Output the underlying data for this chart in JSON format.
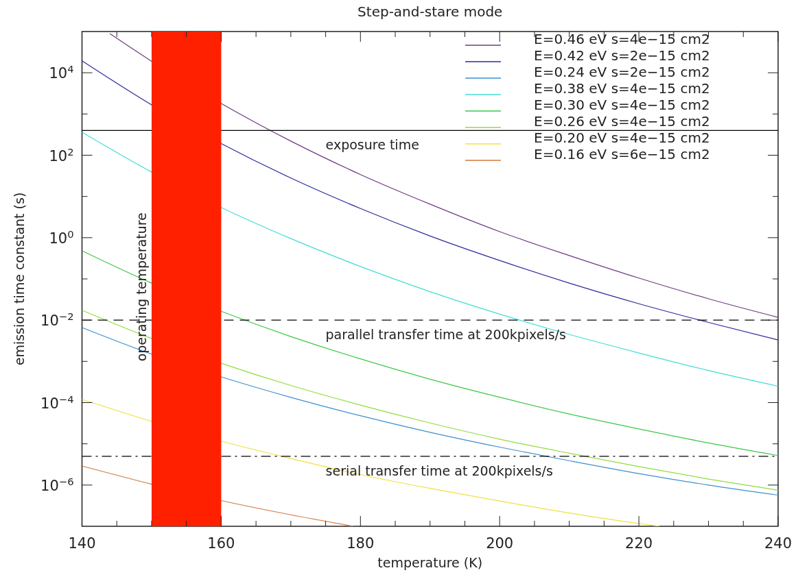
{
  "chart_data": {
    "type": "line",
    "title": "Step-and-stare mode",
    "xlabel": "temperature (K)",
    "ylabel": "emission time constant (s)",
    "log": "y",
    "xlim": [
      140,
      240
    ],
    "ylim": [
      1e-07,
      100000
    ],
    "xticks": [
      140,
      {
        "value": 145,
        "label": null
      },
      {
        "value": 150,
        "label": null
      },
      {
        "value": 155,
        "label": null
      },
      160,
      {
        "value": 165,
        "label": null
      },
      {
        "value": 170,
        "label": null
      },
      {
        "value": 175,
        "label": null
      },
      180,
      {
        "value": 185,
        "label": null
      },
      {
        "value": 190,
        "label": null
      },
      {
        "value": 195,
        "label": null
      },
      200,
      {
        "value": 205,
        "label": null
      },
      {
        "value": 210,
        "label": null
      },
      {
        "value": 215,
        "label": null
      },
      220,
      {
        "value": 225,
        "label": null
      },
      {
        "value": 230,
        "label": null
      },
      {
        "value": 235,
        "label": null
      },
      240
    ],
    "yticks": [
      {
        "value": 1e-06,
        "label": "10$^{−6}$"
      },
      {
        "value": 1e-05,
        "label": null
      },
      {
        "value": 0.0001,
        "label": "10$^{−4}$"
      },
      {
        "value": 0.001,
        "label": null
      },
      {
        "value": 0.01,
        "label": "10$^{−2}$"
      },
      {
        "value": 0.1,
        "label": null
      },
      {
        "value": 1,
        "label": "10$^{0}$"
      },
      {
        "value": 10,
        "label": null
      },
      {
        "value": 100,
        "label": "10$^{2}$"
      },
      {
        "value": 1000,
        "label": null
      },
      {
        "value": 10000,
        "label": "10$^{4}$"
      }
    ],
    "legend": "top right",
    "series": [
      {
        "name": "E=0.46 eV s=4e−15 cm2",
        "color": "#6e3a82",
        "x": [
          144,
          150,
          160,
          170,
          180,
          190,
          200,
          210,
          220,
          230,
          240
        ],
        "values": [
          89000,
          19000,
          1800,
          220,
          34,
          6.5,
          1.4,
          0.37,
          0.105,
          0.033,
          0.0117
        ]
      },
      {
        "name": "E=0.42 eV s=2e−15 cm2",
        "color": "#2a2a9c",
        "x": [
          140,
          150,
          160,
          170,
          180,
          190,
          200,
          210,
          220,
          230,
          240
        ],
        "values": [
          19500,
          1670,
          192,
          28,
          5.1,
          1.1,
          0.28,
          0.079,
          0.025,
          0.0088,
          0.0033
        ]
      },
      {
        "name": "E=0.24 eV s=2e−15 cm2",
        "color": "#3a8fd0",
        "x": [
          140,
          150,
          160,
          170,
          180,
          190,
          200,
          210,
          220,
          230,
          240
        ],
        "values": [
          0.0066,
          0.0015,
          0.00042,
          0.000134,
          4.8e-05,
          1.9e-05,
          8.3e-06,
          3.9e-06,
          1.9e-06,
          1e-06,
          5.7e-07
        ]
      },
      {
        "name": "E=0.38 eV s=4e−15 cm2",
        "color": "#40ddd6",
        "x": [
          140,
          150,
          160,
          170,
          180,
          190,
          200,
          210,
          220,
          230,
          240
        ],
        "values": [
          360,
          39,
          5.4,
          0.95,
          0.2,
          0.049,
          0.014,
          0.0045,
          0.0016,
          0.0006,
          0.00025
        ]
      },
      {
        "name": "E=0.30 eV s=4e−15 cm2",
        "color": "#3cc846",
        "x": [
          140,
          150,
          160,
          170,
          180,
          190,
          200,
          210,
          220,
          230,
          240
        ],
        "values": [
          0.48,
          0.079,
          0.0164,
          0.004,
          0.00115,
          0.00037,
          0.000135,
          5.3e-05,
          2.3e-05,
          1.05e-05,
          5.2e-06
        ]
      },
      {
        "name": "E=0.26 eV s=4e−15 cm2",
        "color": "#8fdc3c",
        "x": [
          140,
          150,
          160,
          170,
          180,
          190,
          200,
          210,
          220,
          230,
          240
        ],
        "values": [
          0.0174,
          0.0036,
          0.0009,
          0.00026,
          8.7e-05,
          3.2e-05,
          1.3e-05,
          5.9e-06,
          2.8e-06,
          1.4e-06,
          7.5e-07
        ]
      },
      {
        "name": "E=0.20 eV s=4e−15 cm2",
        "color": "#f0e040",
        "x": [
          140,
          150,
          160,
          170,
          180,
          190,
          200,
          210,
          220,
          223
        ],
        "values": [
          0.00012,
          3.5e-05,
          1.16e-05,
          4.4e-06,
          1.8e-06,
          8.3e-07,
          4.1e-07,
          2.1e-07,
          1.17e-07,
          1e-07
        ]
      },
      {
        "name": "E=0.16 eV s=6e−15 cm2",
        "color": "#d2783c",
        "x": [
          140,
          150,
          160,
          170,
          179
        ],
        "values": [
          2.9e-06,
          1.05e-06,
          4.2e-07,
          1.9e-07,
          1e-07
        ]
      }
    ],
    "ref_lines": [
      {
        "axis": "y",
        "value": 400,
        "label": "exposure time",
        "line_style": "solid",
        "color": "#000000"
      },
      {
        "axis": "y",
        "value": 0.01,
        "label": "parallel transfer time at 200kpixels/s",
        "line_style": "dashed",
        "color": "#000000"
      },
      {
        "axis": "y",
        "value": 5e-06,
        "label": "serial transfer time at 200kpixels/s",
        "line_style": "dashdot",
        "color": "#000000"
      }
    ],
    "bands": [
      {
        "axis": "x",
        "from": 150,
        "to": 160,
        "label": "operating temperature",
        "color": "#ff2000"
      }
    ]
  }
}
